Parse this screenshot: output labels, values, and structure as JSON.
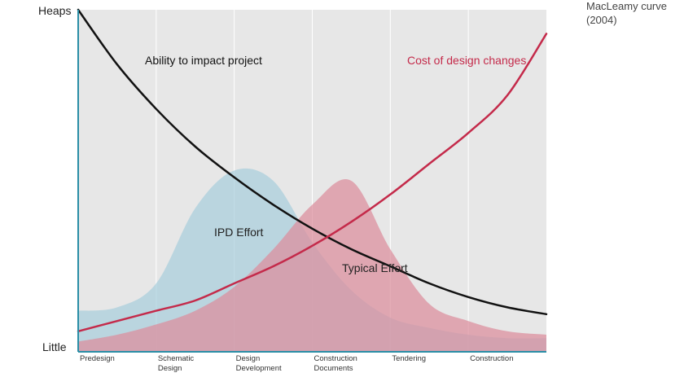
{
  "caption": {
    "title": "MacLeamy curve",
    "year": "(2004)"
  },
  "colors": {
    "background": "#e7e7e7",
    "gridline": "#ffffff",
    "axis": "#2a8ea6",
    "ability": "#111111",
    "cost": "#c42a4a",
    "ipd_fill": "#a9cedd",
    "typical_fill": "#dc8d9c"
  },
  "chart_data": {
    "type": "line",
    "title": "MacLeamy curve (2004)",
    "xlabel": "",
    "ylabel": "",
    "ylim": [
      0,
      100
    ],
    "y_tick_labels": {
      "top": "Heaps",
      "bottom": "Little"
    },
    "categories": [
      [
        "Predesign"
      ],
      [
        "Schematic",
        "Design"
      ],
      [
        "Design",
        "Development"
      ],
      [
        "Construction",
        "Documents"
      ],
      [
        "Tendering"
      ],
      [
        "Construction"
      ]
    ],
    "x": [
      0,
      0.5,
      1,
      1.5,
      2,
      2.5,
      3,
      3.5,
      4,
      4.5,
      5,
      5.5,
      6
    ],
    "series": [
      {
        "name": "Ability to impact project",
        "style": "line",
        "color": "#111111",
        "label": "Ability to impact project",
        "values": [
          100,
          84,
          71,
          60,
          51,
          43,
          36,
          30,
          25,
          20,
          16,
          13,
          11
        ]
      },
      {
        "name": "Cost of design changes",
        "style": "line",
        "color": "#c42a4a",
        "label": "Cost of design changes",
        "values": [
          6,
          9,
          12,
          15,
          20,
          25,
          31,
          38,
          46,
          55,
          64,
          75,
          93
        ]
      },
      {
        "name": "IPD Effort",
        "style": "area",
        "color": "#a9cedd",
        "label": "IPD Effort",
        "values": [
          12,
          13,
          20,
          42,
          53,
          50,
          32,
          18,
          10,
          7,
          5,
          4,
          4
        ]
      },
      {
        "name": "Typical Effort",
        "style": "area",
        "color": "#dc8d9c",
        "label": "Typical Effort",
        "values": [
          3,
          5,
          8,
          12,
          19,
          30,
          43,
          50,
          30,
          14,
          9,
          6,
          5
        ]
      }
    ]
  }
}
